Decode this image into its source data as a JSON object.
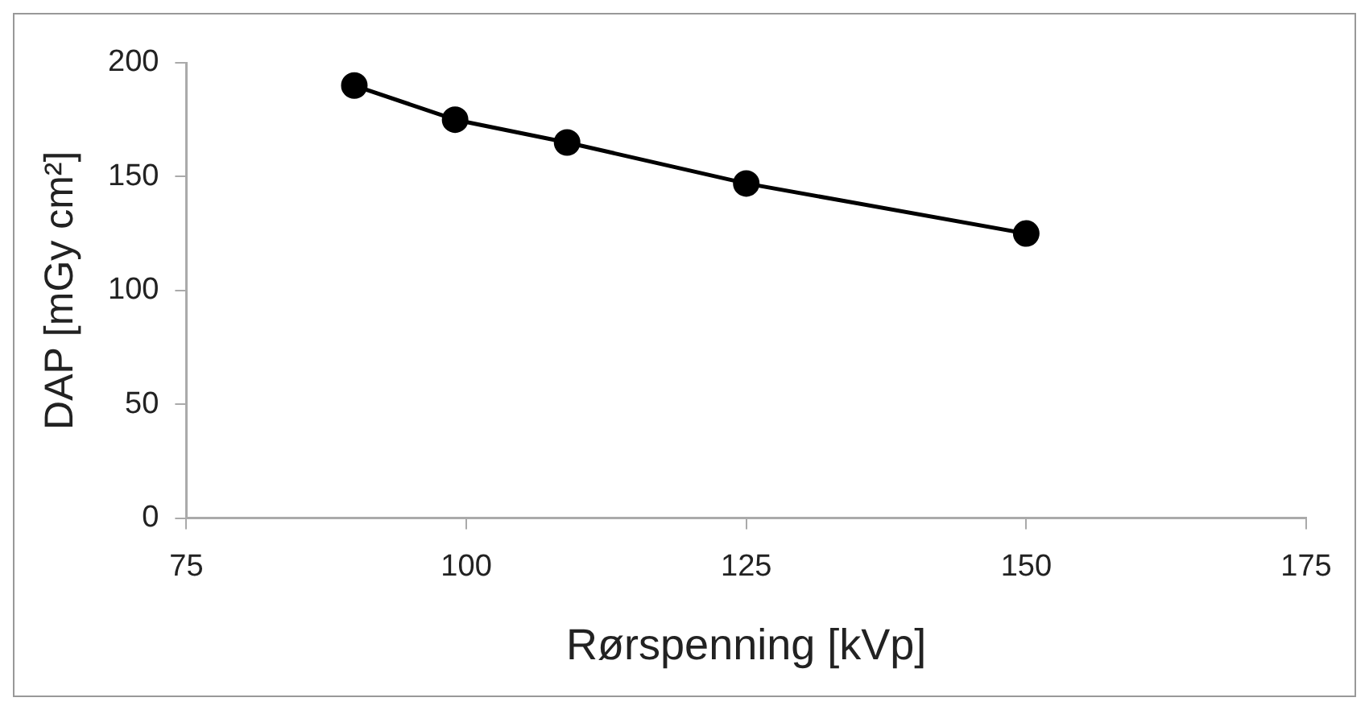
{
  "chart_data": {
    "type": "line",
    "xlabel": "Rørspenning [kVp]",
    "ylabel": "DAP [mGy cm²]",
    "x": [
      90,
      99,
      109,
      125,
      150
    ],
    "series": [
      {
        "color": "#000000",
        "values": [
          190,
          175,
          165,
          147,
          125
        ]
      }
    ],
    "xlim": [
      75,
      175
    ],
    "xticks": [
      75,
      100,
      125,
      150,
      175
    ],
    "ylim": [
      0,
      200
    ],
    "yticks": [
      0,
      50,
      100,
      150,
      200
    ],
    "grid": false,
    "legend": false,
    "marker": "circle",
    "line_style": "solid"
  }
}
